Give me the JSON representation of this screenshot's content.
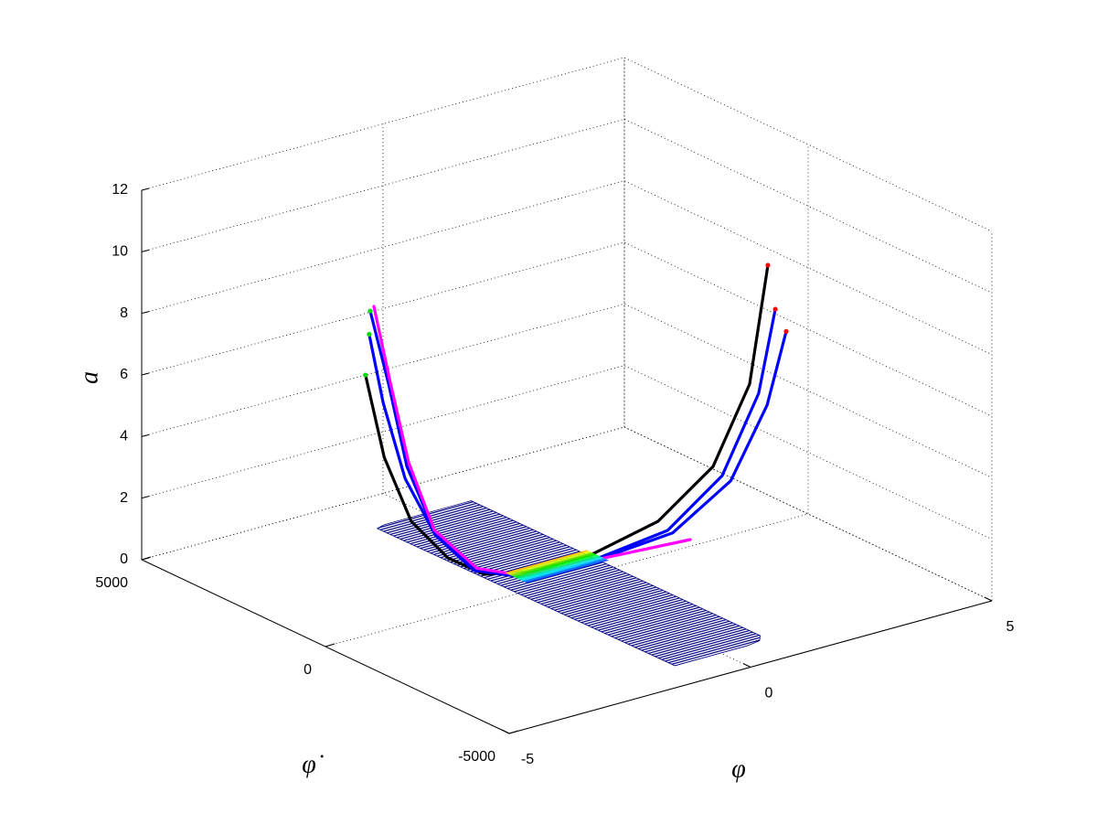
{
  "chart_data": {
    "type": "line3d",
    "xlabel": "φ",
    "ylabel": "φ̇",
    "zlabel": "a",
    "xlim": [
      -5,
      5
    ],
    "ylim": [
      -5000,
      5000
    ],
    "zlim": [
      0,
      12
    ],
    "xticks": [
      -5,
      0,
      5
    ],
    "yticks": [
      -5000,
      0,
      5000
    ],
    "zticks": [
      0,
      2,
      4,
      6,
      8,
      10,
      12
    ],
    "grid": true,
    "surface": {
      "color": "#000080",
      "x": [
        -1.05,
        -0.85,
        0.95,
        1.0,
        0.85,
        0.55,
        -0.95
      ],
      "y": [
        3780,
        3850,
        3850,
        -3950,
        -4130,
        -4190,
        -4190
      ]
    },
    "band": {
      "x": [
        -0.6,
        1.1
      ],
      "y": [
        300,
        900
      ]
    },
    "series": [
      {
        "color": "#000000",
        "start_color": "#00dd00",
        "end_color": "#ff0000",
        "x": [
          -2.07,
          -1.97,
          -1.77,
          -1.45,
          -1.0,
          -0.28,
          0.76,
          1.81,
          2.68,
          3.14,
          3.26
        ],
        "y": [
          2760,
          2380,
          1910,
          1330,
          930,
          625,
          260,
          -110,
          -460,
          -850,
          -1190
        ],
        "z": [
          6,
          3.5,
          1.6,
          0.6,
          0.1,
          0.05,
          0.4,
          1.2,
          2.8,
          5.5,
          9.5
        ]
      },
      {
        "color": "#0000ff",
        "start_color": "#00dd00",
        "end_color": "#ff0000",
        "x": [
          -1.94,
          -1.59,
          -1.5,
          -1.47,
          -1.14,
          -0.49,
          0.76,
          2.02,
          3.06,
          3.77,
          3.59
        ],
        "y": [
          2800,
          2760,
          2380,
          1680,
          990,
          610,
          250,
          -90,
          -210,
          -270,
          -960
        ],
        "z": [
          8,
          5.5,
          3,
          1.3,
          0.3,
          0,
          0.2,
          0.8,
          2.2,
          4.6,
          7.8
        ]
      },
      {
        "color": "#0000ff",
        "start_color": "#00dd00",
        "end_color": "#ff0000",
        "x": [
          -2.0,
          -1.75,
          -1.6,
          -1.5,
          -1.2,
          -0.5,
          0.8,
          2.1,
          3.2,
          3.9,
          3.8
        ],
        "y": [
          2750,
          2700,
          2300,
          1600,
          950,
          580,
          220,
          -120,
          -260,
          -330,
          -980
        ],
        "z": [
          7.3,
          5.0,
          2.7,
          1.2,
          0.3,
          0,
          0.2,
          0.7,
          2.0,
          4.2,
          7.0
        ]
      },
      {
        "color": "#ff00ff",
        "x": [
          -1.85,
          -1.55,
          -1.45,
          -1.45,
          -1.1,
          -0.45,
          2.49
        ],
        "y": [
          2820,
          2780,
          2400,
          1700,
          1000,
          620,
          -90
        ],
        "z": [
          8.1,
          5.6,
          3.1,
          1.3,
          0.3,
          0,
          0.3
        ]
      }
    ]
  }
}
